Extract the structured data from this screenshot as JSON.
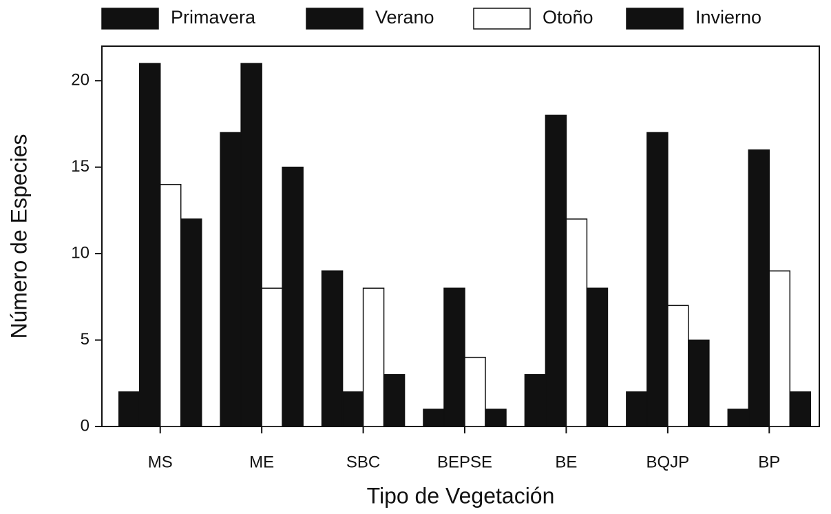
{
  "chart_data": {
    "type": "bar",
    "x_label": "Tipo de Vegetación",
    "y_label": "Número de Especies",
    "categories": [
      "MS",
      "ME",
      "SBC",
      "BEPSE",
      "BE",
      "BQJP",
      "BP"
    ],
    "series": [
      {
        "name": "Primavera",
        "color": "#111111",
        "values": [
          2,
          17,
          9,
          1,
          3,
          2,
          1
        ]
      },
      {
        "name": "Verano",
        "color": "#111111",
        "values": [
          21,
          21,
          2,
          8,
          18,
          17,
          16
        ]
      },
      {
        "name": "Otoño",
        "color": "#ffffff",
        "values": [
          14,
          8,
          8,
          4,
          12,
          7,
          9
        ]
      },
      {
        "name": "Invierno",
        "color": "#111111",
        "values": [
          12,
          15,
          3,
          1,
          8,
          5,
          2
        ]
      }
    ],
    "ylim": [
      0,
      22
    ],
    "yticks": [
      0,
      5,
      10,
      15,
      20
    ],
    "grid": false
  }
}
